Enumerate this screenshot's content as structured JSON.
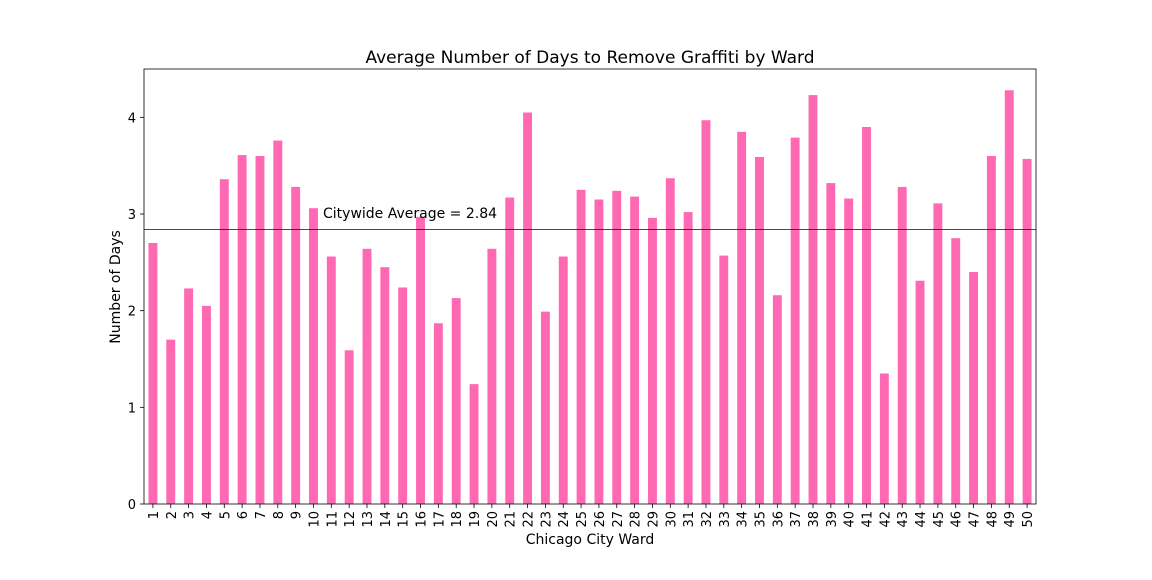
{
  "chart_data": {
    "type": "bar",
    "title": "Average Number of Days to Remove Graffiti by Ward",
    "xlabel": "Chicago City Ward",
    "ylabel": "Number of Days",
    "ylim": [
      0,
      4.5
    ],
    "yticks": [
      0,
      1,
      2,
      3,
      4
    ],
    "grid": false,
    "bar_color": "#ff69b4",
    "categories": [
      "1",
      "2",
      "3",
      "4",
      "5",
      "6",
      "7",
      "8",
      "9",
      "10",
      "11",
      "12",
      "13",
      "14",
      "15",
      "16",
      "17",
      "18",
      "19",
      "20",
      "21",
      "22",
      "23",
      "24",
      "25",
      "26",
      "27",
      "28",
      "29",
      "30",
      "31",
      "32",
      "33",
      "34",
      "35",
      "36",
      "37",
      "38",
      "39",
      "40",
      "41",
      "42",
      "43",
      "44",
      "45",
      "46",
      "47",
      "48",
      "49",
      "50"
    ],
    "values": [
      2.7,
      1.7,
      2.23,
      2.05,
      3.36,
      3.61,
      3.6,
      3.76,
      3.28,
      3.06,
      2.56,
      1.59,
      2.64,
      2.45,
      2.24,
      2.97,
      1.87,
      2.13,
      1.24,
      2.64,
      3.17,
      4.05,
      1.99,
      2.56,
      3.25,
      3.15,
      3.24,
      3.18,
      2.96,
      3.37,
      3.02,
      3.97,
      2.57,
      3.85,
      3.59,
      2.16,
      3.79,
      4.23,
      3.32,
      3.16,
      3.9,
      1.35,
      3.28,
      2.31,
      3.11,
      2.75,
      2.4,
      3.6,
      4.28,
      3.57
    ],
    "reference_line": {
      "value": 2.84,
      "label": "Citywide Average = 2.84",
      "color": "#000000"
    }
  }
}
